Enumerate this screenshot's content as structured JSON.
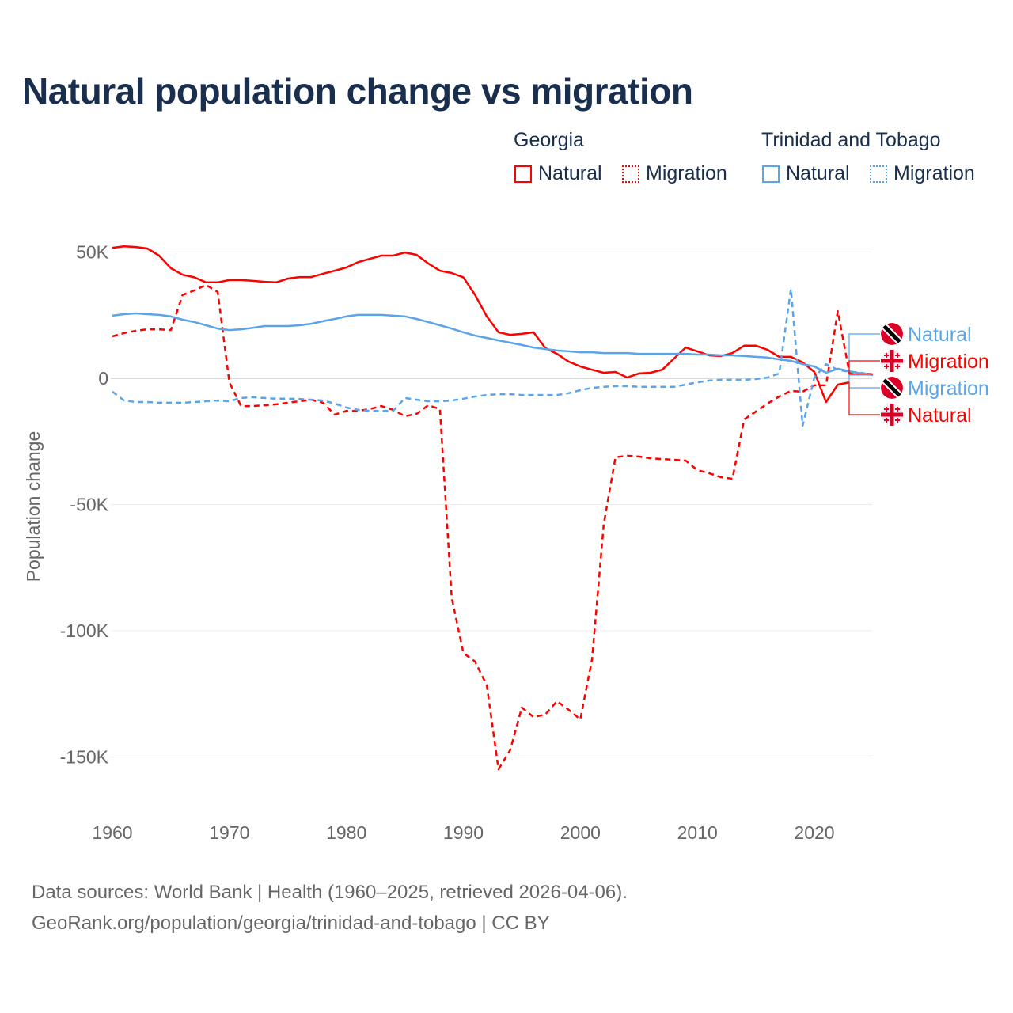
{
  "chart_data": {
    "type": "line",
    "title": "Natural population change vs migration",
    "xlabel": "",
    "ylabel": "Population change",
    "xlim": [
      1960,
      2025
    ],
    "ylim": [
      -165000,
      55000
    ],
    "x_ticks": [
      1960,
      1970,
      1980,
      1990,
      2000,
      2010,
      2020
    ],
    "x_tick_labels": [
      "1960",
      "1970",
      "1980",
      "1990",
      "2000",
      "2010",
      "2020"
    ],
    "y_ticks": [
      50000,
      0,
      -50000,
      -100000,
      -150000
    ],
    "y_tick_labels": [
      "50K",
      "0",
      "-50K",
      "-100K",
      "-150K"
    ],
    "grid": true,
    "legend": {
      "placement": "top-right",
      "groups": [
        {
          "name": "Georgia",
          "items": [
            "Natural",
            "Migration"
          ]
        },
        {
          "name": "Trinidad and Tobago",
          "items": [
            "Natural",
            "Migration"
          ]
        }
      ]
    },
    "colors": {
      "georgia": "#ff0000",
      "trinidad": "#5ba4e8"
    },
    "series": [
      {
        "name": "Georgia Natural",
        "country": "Georgia",
        "kind": "Natural",
        "style": "solid",
        "color": "#ff0000",
        "start_year": 1960,
        "values": [
          51.7,
          52.3,
          52,
          51.4,
          48.6,
          43.6,
          41,
          40,
          38,
          38,
          38.9,
          38.9,
          38.6,
          38.2,
          38,
          39.5,
          40.1,
          40.1,
          41.4,
          42.6,
          43.9,
          46,
          47.3,
          48.6,
          48.6,
          49.8,
          48.9,
          45.5,
          42.6,
          41.7,
          40,
          33,
          24.5,
          18.2,
          17.2,
          17.6,
          18.2,
          12,
          9.7,
          6.6,
          4.7,
          3.4,
          2.2,
          2.5,
          0.3,
          1.9,
          2.2,
          3.4,
          7.8,
          12.2,
          10.7,
          9.1,
          8.8,
          10,
          12.9,
          12.9,
          11.3,
          8.5,
          8.5,
          6.3,
          2.5,
          -9.4,
          -2.5,
          -1.6
        ]
      },
      {
        "name": "Georgia Migration",
        "country": "Georgia",
        "kind": "Migration",
        "style": "dashed",
        "color": "#ff0000",
        "start_year": 1960,
        "values": [
          16.6,
          17.9,
          18.8,
          19.4,
          19.4,
          19.1,
          33,
          34.8,
          37,
          34.2,
          -1.6,
          -11,
          -11,
          -10.7,
          -10.3,
          -9.7,
          -9.1,
          -8.5,
          -9.7,
          -14.4,
          -12.9,
          -12.9,
          -12.2,
          -11,
          -12.5,
          -15,
          -14.1,
          -10.7,
          -12.2,
          -86.8,
          -108.8,
          -112.2,
          -121.6,
          -154.9,
          -147.3,
          -130.4,
          -134.2,
          -133.2,
          -127.9,
          -131.3,
          -135.1,
          -111.3,
          -57.7,
          -31.3,
          -30.7,
          -31,
          -31.7,
          -32,
          -32.3,
          -32.6,
          -36.4,
          -37.6,
          -39.2,
          -39.8,
          -16.3,
          -13.2,
          -10,
          -7.2,
          -5,
          -5.3,
          -2.8,
          -2.8,
          26.6,
          2.2,
          1.9,
          1.6
        ]
      },
      {
        "name": "Trinidad and Tobago Natural",
        "country": "Trinidad and Tobago",
        "kind": "Natural",
        "style": "solid",
        "color": "#5ba4e8",
        "start_year": 1960,
        "values": [
          24.8,
          25.4,
          25.7,
          25.4,
          25.1,
          24.5,
          23.2,
          22.3,
          21,
          19.7,
          19.1,
          19.4,
          20,
          20.7,
          20.7,
          20.7,
          21,
          21.6,
          22.6,
          23.5,
          24.5,
          25.1,
          25.1,
          25.1,
          24.8,
          24.5,
          23.5,
          22.3,
          21,
          19.7,
          18.2,
          16.9,
          16,
          15,
          14.1,
          13.2,
          12.2,
          11.6,
          11,
          10.7,
          10.3,
          10.3,
          10,
          10,
          10,
          9.7,
          9.7,
          9.7,
          9.7,
          9.7,
          9.4,
          9.4,
          9.1,
          9.1,
          8.8,
          8.5,
          8.2,
          7.5,
          6.9,
          5.6,
          4.7,
          2.2,
          3.8,
          2.8,
          1.9,
          1.3
        ]
      },
      {
        "name": "Trinidad and Tobago Migration",
        "country": "Trinidad and Tobago",
        "kind": "Migration",
        "style": "dashed",
        "color": "#5ba4e8",
        "start_year": 1960,
        "values": [
          -5.3,
          -8.8,
          -9.4,
          -9.4,
          -9.7,
          -9.7,
          -9.7,
          -9.4,
          -9.1,
          -8.8,
          -9.1,
          -7.8,
          -7.5,
          -7.8,
          -8.1,
          -8.1,
          -8.2,
          -8.5,
          -8.8,
          -10,
          -11.6,
          -12.5,
          -12.9,
          -12.9,
          -12.9,
          -7.8,
          -8.5,
          -9.1,
          -9.1,
          -8.8,
          -8.1,
          -7.2,
          -6.6,
          -6.3,
          -6.3,
          -6.6,
          -6.6,
          -6.6,
          -6.6,
          -5.9,
          -4.7,
          -3.8,
          -3.4,
          -3.1,
          -3.1,
          -3.4,
          -3.4,
          -3.4,
          -3.4,
          -2.5,
          -1.6,
          -0.9,
          -0.6,
          -0.6,
          -0.6,
          -0.3,
          0.3,
          1.9,
          35.4,
          -18.8,
          0.3,
          5.6,
          3.4,
          2.5,
          2.2,
          1.3
        ]
      }
    ],
    "values_unit": "thousands",
    "end_labels": [
      {
        "text": "Natural",
        "country": "Trinidad and Tobago",
        "color": "#5ba4e8"
      },
      {
        "text": "Migration",
        "country": "Georgia",
        "color": "#ff0000"
      },
      {
        "text": "Migration",
        "country": "Trinidad and Tobago",
        "color": "#5ba4e8"
      },
      {
        "text": "Natural",
        "country": "Georgia",
        "color": "#ff0000"
      }
    ]
  },
  "legend_text": {
    "georgia": "Georgia",
    "georgia_natural": "Natural",
    "georgia_migration": "Migration",
    "trinidad": "Trinidad and Tobago",
    "trinidad_natural": "Natural",
    "trinidad_migration": "Migration"
  },
  "footer": {
    "line1": "Data sources: World Bank | Health (1960–2025, retrieved 2026-04-06).",
    "line2": "GeoRank.org/population/georgia/trinidad-and-tobago | CC BY"
  }
}
